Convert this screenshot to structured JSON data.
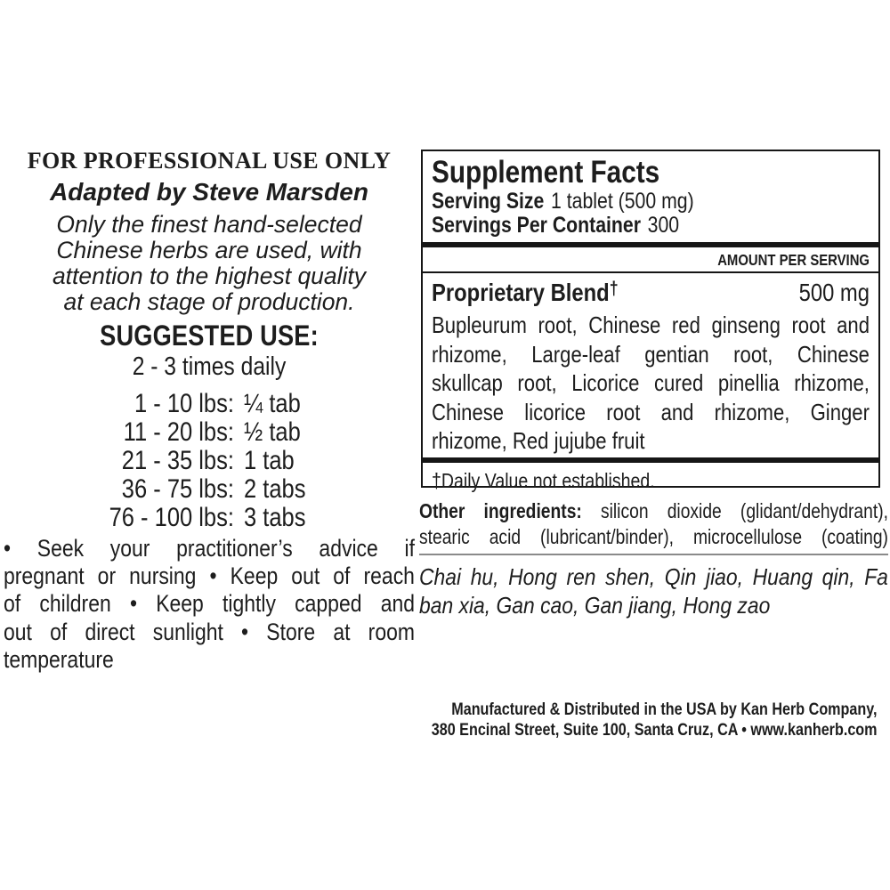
{
  "colors": {
    "ink": "#1d1d1d",
    "panel_border": "#161616",
    "thin_rule_gray": "#8a8a8a",
    "background": "#ffffff"
  },
  "left_column": {
    "professional_notice": "FOR PROFESSIONAL USE ONLY",
    "adapted_by": "Adapted by Steve Marsden",
    "quality_statement_lines": [
      "Only the finest hand-selected",
      "Chinese herbs are used, with",
      "attention to the highest quality",
      "at each stage of production."
    ],
    "suggested_use": {
      "heading": "SUGGESTED USE:",
      "frequency": "2 - 3 times daily",
      "doses": [
        {
          "range": "1 - 10 lbs:",
          "dose": "¼ tab"
        },
        {
          "range": "11 - 20 lbs:",
          "dose": "½ tab"
        },
        {
          "range": "21 - 35 lbs:",
          "dose": "1 tab"
        },
        {
          "range": "36 - 75 lbs:",
          "dose": "2 tabs"
        },
        {
          "range": "76 - 100 lbs:",
          "dose": "3 tabs"
        }
      ]
    },
    "cautions_lines": [
      "• Seek your practitioner’s advice if",
      "pregnant or nursing • Keep out of reach",
      "of children • Keep tightly capped and",
      "out of direct sunlight • Store at room",
      "temperature"
    ]
  },
  "supplement_facts": {
    "title": "Supplement Facts",
    "serving_size_label": "Serving Size",
    "serving_size_value": "1 tablet (500 mg)",
    "servings_per_container_label": "Servings Per Container",
    "servings_per_container_value": "300",
    "amount_header": "AMOUNT PER SERVING",
    "blend_name": "Proprietary Blend",
    "blend_dagger": "†",
    "blend_amount": "500 mg",
    "blend_lines": [
      "Bupleurum root, Chinese red ginseng root and",
      "rhizome, Large-leaf gentian root, Chinese",
      "skullcap root, Licorice cured pinellia rhizome,",
      "Chinese licorice root and rhizome, Ginger",
      "rhizome, Red jujube fruit"
    ],
    "footnote": "†Daily Value not established."
  },
  "other_ingredients_lines": [
    "Other ingredients: silicon dioxide (glidant/dehydrant),",
    "stearic acid (lubricant/binder), microcellulose (coating)"
  ],
  "pinyin_lines": [
    "Chai hu, Hong ren shen, Qin jiao, Huang qin, Fa",
    "ban xia, Gan cao, Gan jiang, Hong zao"
  ],
  "manufacturer_lines": [
    "Manufactured & Distributed in the USA by Kan Herb Company,",
    "380 Encinal Street, Suite 100, Santa Cruz, CA • www.kanherb.com"
  ]
}
